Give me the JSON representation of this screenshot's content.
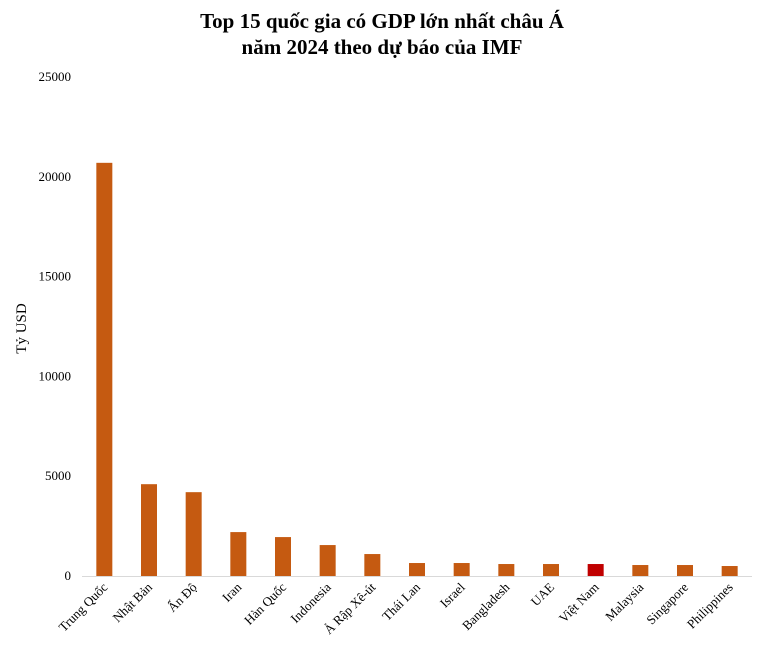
{
  "chart_data": {
    "type": "bar",
    "title_line1": "Top 15 quốc gia có GDP lớn nhất châu Á",
    "title_line2": "năm 2024 theo dự báo của IMF",
    "ylabel": "Tỷ USD",
    "ylim": [
      0,
      25000
    ],
    "yticks": [
      "0",
      "5000",
      "10000",
      "15000",
      "20000",
      "25000"
    ],
    "categories": [
      "Trung Quốc",
      "Nhật Bản",
      "Ấn Độ",
      "Iran",
      "Hàn Quốc",
      "Indonesia",
      "Ả Rập Xê-út",
      "Thái Lan",
      "Israel",
      "Bangladesh",
      "UAE",
      "Việt Nam",
      "Malaysia",
      "Singapore",
      "Philippines"
    ],
    "values": [
      20700,
      4600,
      4200,
      2200,
      1950,
      1550,
      1100,
      650,
      650,
      600,
      600,
      600,
      550,
      550,
      500
    ],
    "bar_color": "#c55a11",
    "highlight_color": "#c00000",
    "highlight_category": "Việt Nam",
    "grid": false,
    "legend": "none"
  }
}
